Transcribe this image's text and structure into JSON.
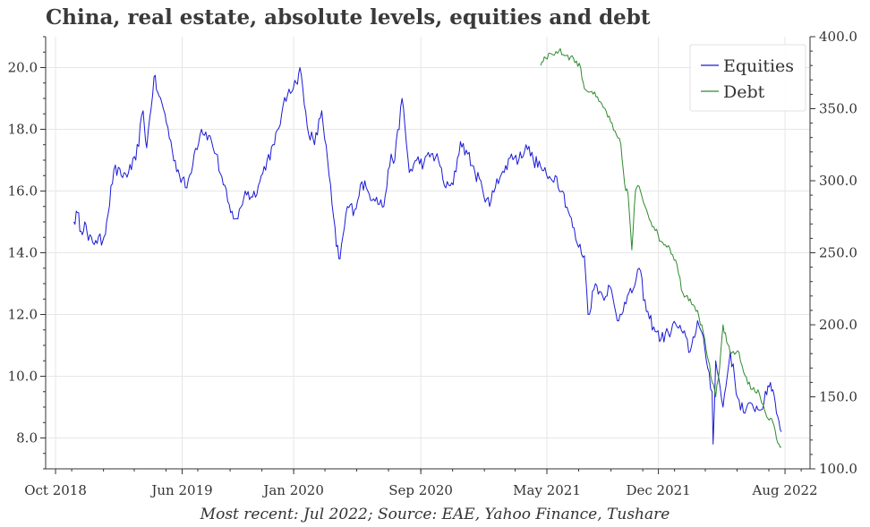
{
  "chart_data": {
    "type": "line",
    "title": "China, real estate, absolute levels, equities and debt",
    "caption": "Most recent: Jul 2022; Source: EAE, Yahoo Finance, Tushare",
    "x_ticks": [
      "Oct 2018",
      "Jun 2019",
      "Jan 2020",
      "Sep 2020",
      "May 2021",
      "Dec 2021",
      "Aug 2022"
    ],
    "y_left_ticks": [
      "8.0",
      "10.0",
      "12.0",
      "14.0",
      "16.0",
      "18.0",
      "20.0"
    ],
    "y_right_ticks": [
      "100.0",
      "150.0",
      "200.0",
      "250.0",
      "300.0",
      "350.0",
      "400.0"
    ],
    "y_left_range": [
      7.0,
      21.0
    ],
    "y_right_range": [
      100.0,
      400.0
    ],
    "grid": true,
    "legend_position": "top-right",
    "colors": {
      "equities": "#1a1ad6",
      "debt": "#2e8b2e"
    },
    "series": [
      {
        "name": "Equities",
        "axis": "left",
        "points": [
          [
            "2018-11-05",
            15.0
          ],
          [
            "2018-11-12",
            15.3
          ],
          [
            "2018-11-19",
            14.7
          ],
          [
            "2018-11-26",
            15.0
          ],
          [
            "2018-12-03",
            14.4
          ],
          [
            "2018-12-17",
            14.4
          ],
          [
            "2018-12-31",
            14.4
          ],
          [
            "2019-01-07",
            15.0
          ],
          [
            "2019-01-21",
            16.7
          ],
          [
            "2019-02-04",
            16.5
          ],
          [
            "2019-02-18",
            16.6
          ],
          [
            "2019-03-04",
            17.0
          ],
          [
            "2019-03-18",
            18.6
          ],
          [
            "2019-03-25",
            17.4
          ],
          [
            "2019-04-08",
            19.7
          ],
          [
            "2019-04-15",
            19.2
          ],
          [
            "2019-04-29",
            18.5
          ],
          [
            "2019-05-13",
            17.3
          ],
          [
            "2019-05-27",
            16.5
          ],
          [
            "2019-06-10",
            16.1
          ],
          [
            "2019-06-24",
            17.2
          ],
          [
            "2019-07-08",
            18.0
          ],
          [
            "2019-07-22",
            17.8
          ],
          [
            "2019-08-05",
            17.2
          ],
          [
            "2019-08-19",
            16.2
          ],
          [
            "2019-09-02",
            15.3
          ],
          [
            "2019-09-16",
            15.1
          ],
          [
            "2019-09-30",
            16.0
          ],
          [
            "2019-10-14",
            15.8
          ],
          [
            "2019-10-28",
            16.3
          ],
          [
            "2019-11-11",
            17.0
          ],
          [
            "2019-11-25",
            17.5
          ],
          [
            "2019-12-09",
            18.5
          ],
          [
            "2019-12-23",
            19.3
          ],
          [
            "2020-01-06",
            19.5
          ],
          [
            "2020-01-13",
            20.0
          ],
          [
            "2020-01-27",
            18.1
          ],
          [
            "2020-02-10",
            17.5
          ],
          [
            "2020-02-24",
            18.6
          ],
          [
            "2020-03-09",
            16.5
          ],
          [
            "2020-03-23",
            14.2
          ],
          [
            "2020-03-30",
            13.8
          ],
          [
            "2020-04-13",
            15.5
          ],
          [
            "2020-04-27",
            15.4
          ],
          [
            "2020-05-11",
            16.3
          ],
          [
            "2020-05-25",
            15.9
          ],
          [
            "2020-06-08",
            15.8
          ],
          [
            "2020-06-22",
            15.5
          ],
          [
            "2020-07-06",
            17.2
          ],
          [
            "2020-07-13",
            17.0
          ],
          [
            "2020-07-27",
            19.0
          ],
          [
            "2020-08-10",
            16.6
          ],
          [
            "2020-08-24",
            17.0
          ],
          [
            "2020-09-07",
            16.9
          ],
          [
            "2020-09-21",
            17.2
          ],
          [
            "2020-10-05",
            17.0
          ],
          [
            "2020-10-19",
            16.1
          ],
          [
            "2020-11-02",
            16.2
          ],
          [
            "2020-11-16",
            17.6
          ],
          [
            "2020-11-30",
            17.2
          ],
          [
            "2020-12-14",
            16.6
          ],
          [
            "2020-12-28",
            16.1
          ],
          [
            "2021-01-11",
            15.5
          ],
          [
            "2021-01-25",
            16.4
          ],
          [
            "2021-02-08",
            16.6
          ],
          [
            "2021-02-22",
            17.2
          ],
          [
            "2021-03-08",
            17.0
          ],
          [
            "2021-03-22",
            17.5
          ],
          [
            "2021-04-05",
            17.0
          ],
          [
            "2021-04-19",
            16.8
          ],
          [
            "2021-05-03",
            16.4
          ],
          [
            "2021-05-17",
            16.5
          ],
          [
            "2021-05-31",
            16.0
          ],
          [
            "2021-06-14",
            15.2
          ],
          [
            "2021-06-28",
            14.3
          ],
          [
            "2021-07-12",
            13.9
          ],
          [
            "2021-07-19",
            12.0
          ],
          [
            "2021-08-02",
            13.0
          ],
          [
            "2021-08-16",
            12.6
          ],
          [
            "2021-08-30",
            12.9
          ],
          [
            "2021-09-13",
            11.8
          ],
          [
            "2021-09-27",
            12.4
          ],
          [
            "2021-10-11",
            12.7
          ],
          [
            "2021-10-25",
            13.5
          ],
          [
            "2021-11-08",
            12.1
          ],
          [
            "2021-11-22",
            11.6
          ],
          [
            "2021-12-06",
            11.2
          ],
          [
            "2021-12-20",
            11.4
          ],
          [
            "2022-01-03",
            11.7
          ],
          [
            "2022-01-17",
            11.4
          ],
          [
            "2022-01-31",
            10.8
          ],
          [
            "2022-02-14",
            11.8
          ],
          [
            "2022-02-28",
            10.9
          ],
          [
            "2022-03-14",
            9.5
          ],
          [
            "2022-03-16",
            7.8
          ],
          [
            "2022-03-21",
            10.5
          ],
          [
            "2022-04-04",
            9.0
          ],
          [
            "2022-04-18",
            10.8
          ],
          [
            "2022-05-02",
            9.3
          ],
          [
            "2022-05-16",
            8.8
          ],
          [
            "2022-05-30",
            9.1
          ],
          [
            "2022-06-13",
            8.9
          ],
          [
            "2022-06-27",
            9.4
          ],
          [
            "2022-07-04",
            9.8
          ],
          [
            "2022-07-11",
            9.4
          ],
          [
            "2022-07-18",
            8.7
          ],
          [
            "2022-07-25",
            8.2
          ]
        ]
      },
      {
        "name": "Debt",
        "axis": "right",
        "points": [
          [
            "2021-04-19",
            380.0
          ],
          [
            "2021-04-26",
            386.0
          ],
          [
            "2021-05-10",
            388.0
          ],
          [
            "2021-05-24",
            390.0
          ],
          [
            "2021-06-07",
            387.0
          ],
          [
            "2021-06-21",
            385.0
          ],
          [
            "2021-07-05",
            378.0
          ],
          [
            "2021-07-12",
            364.0
          ],
          [
            "2021-07-26",
            362.0
          ],
          [
            "2021-08-09",
            355.0
          ],
          [
            "2021-08-23",
            348.0
          ],
          [
            "2021-09-06",
            335.0
          ],
          [
            "2021-09-20",
            325.0
          ],
          [
            "2021-09-27",
            298.0
          ],
          [
            "2021-10-04",
            290.0
          ],
          [
            "2021-10-11",
            252.0
          ],
          [
            "2021-10-18",
            293.0
          ],
          [
            "2021-10-25",
            296.0
          ],
          [
            "2021-11-08",
            280.0
          ],
          [
            "2021-11-22",
            268.0
          ],
          [
            "2021-12-06",
            258.0
          ],
          [
            "2021-12-20",
            255.0
          ],
          [
            "2022-01-03",
            245.0
          ],
          [
            "2022-01-17",
            222.0
          ],
          [
            "2022-01-31",
            218.0
          ],
          [
            "2022-02-14",
            210.0
          ],
          [
            "2022-02-28",
            190.0
          ],
          [
            "2022-03-07",
            175.0
          ],
          [
            "2022-03-14",
            160.0
          ],
          [
            "2022-03-21",
            150.0
          ],
          [
            "2022-03-28",
            168.0
          ],
          [
            "2022-04-04",
            200.0
          ],
          [
            "2022-04-11",
            188.0
          ],
          [
            "2022-04-18",
            180.0
          ],
          [
            "2022-05-02",
            182.0
          ],
          [
            "2022-05-16",
            165.0
          ],
          [
            "2022-05-30",
            155.0
          ],
          [
            "2022-06-13",
            152.0
          ],
          [
            "2022-06-20",
            145.0
          ],
          [
            "2022-06-27",
            136.0
          ],
          [
            "2022-07-04",
            135.0
          ],
          [
            "2022-07-11",
            130.0
          ],
          [
            "2022-07-18",
            118.0
          ],
          [
            "2022-07-25",
            115.0
          ]
        ]
      }
    ]
  }
}
